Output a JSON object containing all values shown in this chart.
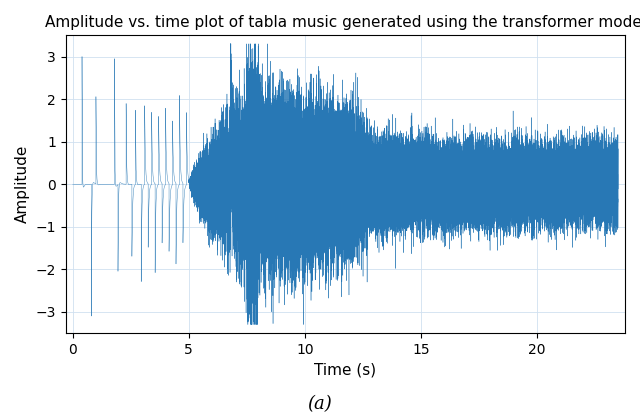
{
  "title": "Amplitude vs. time plot of tabla music generated using the transformer model",
  "xlabel": "Time (s)",
  "ylabel": "Amplitude",
  "caption": "(a)",
  "xlim": [
    -0.3,
    23.8
  ],
  "ylim": [
    -3.5,
    3.5
  ],
  "yticks": [
    -3,
    -2,
    -1,
    0,
    1,
    2,
    3
  ],
  "xticks": [
    0,
    5,
    10,
    15,
    20
  ],
  "line_color": "#2878b5",
  "bg_color": "#f0f0f0",
  "plot_bg_color": "#ffffff",
  "duration": 23.5,
  "title_fontsize": 11,
  "label_fontsize": 11,
  "caption_fontsize": 13,
  "grid_color": "#d0e0f0"
}
